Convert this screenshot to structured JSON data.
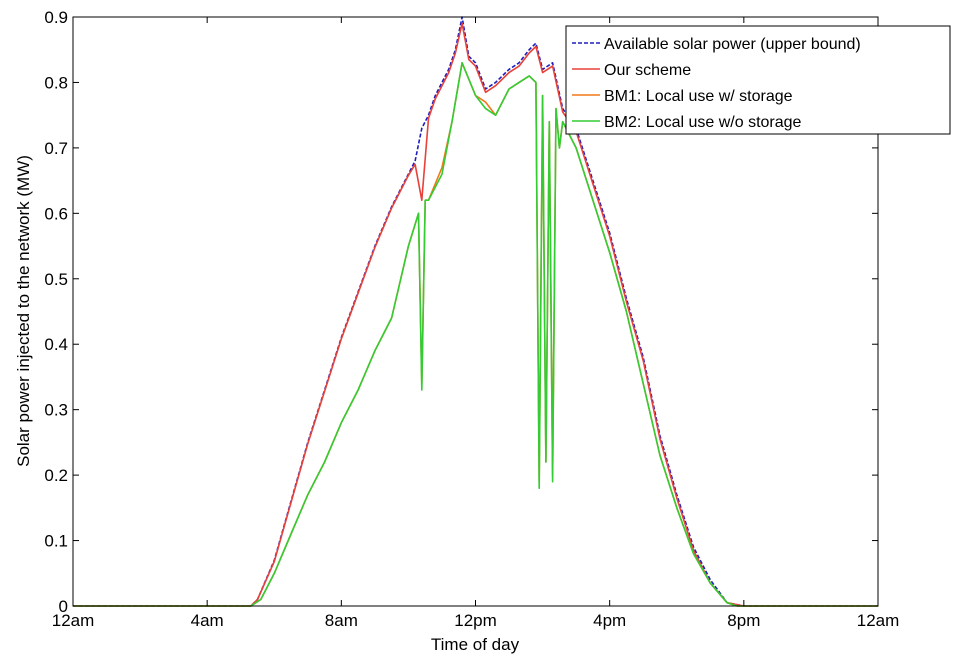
{
  "chart_data": {
    "type": "line",
    "title": "",
    "xlabel": "Time of day",
    "ylabel": "Solar power injected to the network (MW)",
    "x_unit": "hours",
    "xlim": [
      0,
      24
    ],
    "ylim": [
      0,
      0.9
    ],
    "x_ticks": [
      {
        "value": 0,
        "label": "12am"
      },
      {
        "value": 4,
        "label": "4am"
      },
      {
        "value": 8,
        "label": "8am"
      },
      {
        "value": 12,
        "label": "12pm"
      },
      {
        "value": 16,
        "label": "4pm"
      },
      {
        "value": 20,
        "label": "8pm"
      },
      {
        "value": 24,
        "label": "12am"
      }
    ],
    "y_ticks": [
      {
        "value": 0,
        "label": "0"
      },
      {
        "value": 0.1,
        "label": "0.1"
      },
      {
        "value": 0.2,
        "label": "0.2"
      },
      {
        "value": 0.3,
        "label": "0.3"
      },
      {
        "value": 0.4,
        "label": "0.4"
      },
      {
        "value": 0.5,
        "label": "0.5"
      },
      {
        "value": 0.6,
        "label": "0.6"
      },
      {
        "value": 0.7,
        "label": "0.7"
      },
      {
        "value": 0.8,
        "label": "0.8"
      },
      {
        "value": 0.9,
        "label": "0.9"
      }
    ],
    "grid": false,
    "legend_position": "top-right",
    "series": [
      {
        "name": "Available solar power (upper bound)",
        "color": "#1f1fbf",
        "dash": true,
        "x": [
          0,
          5.3,
          5.5,
          6,
          6.5,
          7,
          7.5,
          8,
          8.5,
          9,
          9.5,
          10,
          10.2,
          10.4,
          10.6,
          10.8,
          11,
          11.2,
          11.4,
          11.6,
          11.8,
          12,
          12.3,
          12.6,
          13,
          13.3,
          13.6,
          13.8,
          14,
          14.3,
          14.6,
          15,
          15.5,
          16,
          16.5,
          17,
          17.5,
          18,
          18.5,
          19,
          19.5,
          20,
          24
        ],
        "y": [
          0,
          0,
          0.01,
          0.07,
          0.16,
          0.25,
          0.33,
          0.41,
          0.48,
          0.55,
          0.61,
          0.66,
          0.68,
          0.73,
          0.75,
          0.78,
          0.8,
          0.82,
          0.85,
          0.9,
          0.84,
          0.83,
          0.79,
          0.8,
          0.82,
          0.83,
          0.85,
          0.86,
          0.82,
          0.83,
          0.76,
          0.73,
          0.65,
          0.57,
          0.47,
          0.38,
          0.26,
          0.17,
          0.09,
          0.04,
          0.005,
          0,
          0
        ]
      },
      {
        "name": "Our scheme",
        "color": "#e8413a",
        "dash": false,
        "x": [
          0,
          5.3,
          5.5,
          6,
          6.5,
          7,
          7.5,
          8,
          8.5,
          9,
          9.5,
          10,
          10.2,
          10.4,
          10.6,
          10.8,
          11,
          11.2,
          11.4,
          11.6,
          11.8,
          12,
          12.3,
          12.6,
          13,
          13.3,
          13.6,
          13.8,
          14,
          14.3,
          14.6,
          15,
          15.5,
          16,
          16.5,
          17,
          17.5,
          18,
          18.5,
          19,
          19.5,
          20,
          24
        ],
        "y": [
          0,
          0,
          0.01,
          0.068,
          0.158,
          0.248,
          0.328,
          0.408,
          0.478,
          0.548,
          0.608,
          0.658,
          0.675,
          0.62,
          0.745,
          0.775,
          0.795,
          0.815,
          0.845,
          0.89,
          0.835,
          0.825,
          0.785,
          0.795,
          0.815,
          0.825,
          0.845,
          0.855,
          0.815,
          0.825,
          0.755,
          0.725,
          0.645,
          0.565,
          0.465,
          0.375,
          0.255,
          0.165,
          0.085,
          0.035,
          0.005,
          0,
          0
        ]
      },
      {
        "name": "BM1: Local use w/ storage",
        "color": "#f07818",
        "dash": false,
        "x": [
          0,
          5.3,
          5.6,
          6,
          6.5,
          7,
          7.5,
          8,
          8.5,
          9,
          9.5,
          10,
          10.3,
          10.4,
          10.5,
          10.6,
          11,
          11.3,
          11.6,
          12,
          12.3,
          12.6,
          13,
          13.3,
          13.6,
          13.8,
          13.9,
          14,
          14.1,
          14.2,
          14.3,
          14.4,
          14.5,
          14.6,
          15,
          15.5,
          16,
          16.5,
          17,
          17.5,
          18,
          18.5,
          19,
          19.5,
          19.8,
          24
        ],
        "y": [
          0,
          0,
          0.01,
          0.05,
          0.11,
          0.17,
          0.22,
          0.28,
          0.33,
          0.39,
          0.44,
          0.55,
          0.6,
          0.34,
          0.62,
          0.62,
          0.67,
          0.74,
          0.83,
          0.78,
          0.77,
          0.75,
          0.79,
          0.8,
          0.81,
          0.8,
          0.19,
          0.78,
          0.22,
          0.74,
          0.2,
          0.76,
          0.7,
          0.74,
          0.7,
          0.62,
          0.54,
          0.45,
          0.34,
          0.23,
          0.15,
          0.08,
          0.035,
          0.005,
          0,
          0
        ]
      },
      {
        "name": "BM2: Local use w/o storage",
        "color": "#33cc33",
        "dash": false,
        "x": [
          0,
          5.3,
          5.6,
          6,
          6.5,
          7,
          7.5,
          8,
          8.5,
          9,
          9.5,
          10,
          10.3,
          10.4,
          10.5,
          10.6,
          11,
          11.3,
          11.6,
          12,
          12.3,
          12.6,
          13,
          13.3,
          13.6,
          13.8,
          13.9,
          14,
          14.1,
          14.2,
          14.3,
          14.4,
          14.5,
          14.6,
          15,
          15.5,
          16,
          16.5,
          17,
          17.5,
          18,
          18.5,
          19,
          19.5,
          19.8,
          24
        ],
        "y": [
          0,
          0,
          0.01,
          0.05,
          0.11,
          0.17,
          0.22,
          0.28,
          0.33,
          0.39,
          0.44,
          0.55,
          0.6,
          0.33,
          0.62,
          0.62,
          0.66,
          0.74,
          0.83,
          0.78,
          0.76,
          0.75,
          0.79,
          0.8,
          0.81,
          0.8,
          0.18,
          0.78,
          0.22,
          0.74,
          0.19,
          0.76,
          0.7,
          0.74,
          0.7,
          0.62,
          0.54,
          0.45,
          0.34,
          0.23,
          0.15,
          0.08,
          0.035,
          0.005,
          0,
          0
        ]
      }
    ]
  }
}
